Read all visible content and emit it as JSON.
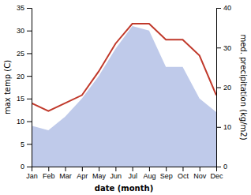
{
  "chart_data": {
    "type": "line",
    "categories": [
      "Jan",
      "Feb",
      "Mar",
      "Apr",
      "May",
      "Jun",
      "Jul",
      "Aug",
      "Sep",
      "Oct",
      "Nov",
      "Dec"
    ],
    "series": [
      {
        "type": "area",
        "color": "#b8c4e8",
        "values": [
          9,
          8,
          11,
          15,
          20,
          26,
          31,
          30,
          22,
          22,
          15,
          12
        ]
      },
      {
        "type": "line",
        "color": "#c0392b",
        "axis": "y2",
        "values": [
          16,
          14,
          16,
          18,
          24,
          31,
          36,
          36,
          32,
          32,
          28,
          18
        ]
      }
    ],
    "x_label": "date (month)",
    "y_label": "max temp (C)",
    "y2_label": "med. precipitation (kg/m2)",
    "ylim": [
      0,
      35
    ],
    "yticks": [
      0,
      5,
      10,
      15,
      20,
      25,
      30,
      35
    ],
    "y2lim": [
      0,
      40
    ],
    "y2ticks": [
      0,
      10,
      20,
      30,
      40
    ],
    "grid": false
  }
}
